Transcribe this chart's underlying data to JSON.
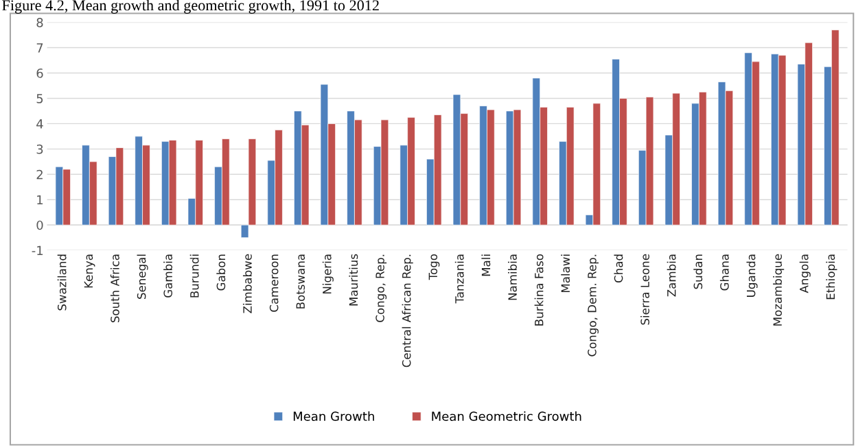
{
  "chart_data": {
    "type": "bar",
    "title": "Figure 4.2, Mean growth and geometric growth, 1991 to 2012",
    "categories": [
      "Swaziland",
      "Kenya",
      "South Africa",
      "Senegal",
      "Gambia",
      "Burundi",
      "Gabon",
      "Zimbabwe",
      "Cameroon",
      "Botswana",
      "Nigeria",
      "Mauritius",
      "Congo, Rep.",
      "Central African Rep.",
      "Togo",
      "Tanzania",
      "Mali",
      "Namibia",
      "Burkina Faso",
      "Malawi",
      "Congo, Dem. Rep.",
      "Chad",
      "Sierra Leone",
      "Zambia",
      "Sudan",
      "Ghana",
      "Uganda",
      "Mozambique",
      "Angola",
      "Ethiopia"
    ],
    "series": [
      {
        "name": "Mean Growth",
        "color": "#4f81bd",
        "values": [
          2.3,
          3.15,
          2.7,
          3.5,
          3.3,
          1.05,
          2.3,
          -0.5,
          2.55,
          4.5,
          5.55,
          4.5,
          3.1,
          3.15,
          2.6,
          5.15,
          4.7,
          4.5,
          5.8,
          3.3,
          0.4,
          6.55,
          2.95,
          3.55,
          4.8,
          5.65,
          6.8,
          6.75,
          6.35,
          6.25
        ]
      },
      {
        "name": "Mean Geometric Growth",
        "color": "#c0504d",
        "values": [
          2.2,
          2.5,
          3.05,
          3.15,
          3.35,
          3.35,
          3.4,
          3.4,
          3.75,
          3.95,
          4.0,
          4.15,
          4.15,
          4.25,
          4.35,
          4.4,
          4.55,
          4.55,
          4.65,
          4.65,
          4.8,
          5.0,
          5.05,
          5.2,
          5.25,
          5.3,
          6.45,
          6.7,
          7.2,
          7.7
        ]
      }
    ],
    "ylim": [
      -1,
      8
    ],
    "yticks": [
      -1,
      0,
      1,
      2,
      3,
      4,
      5,
      6,
      7,
      8
    ],
    "grid": "y",
    "legend": "bottom"
  }
}
